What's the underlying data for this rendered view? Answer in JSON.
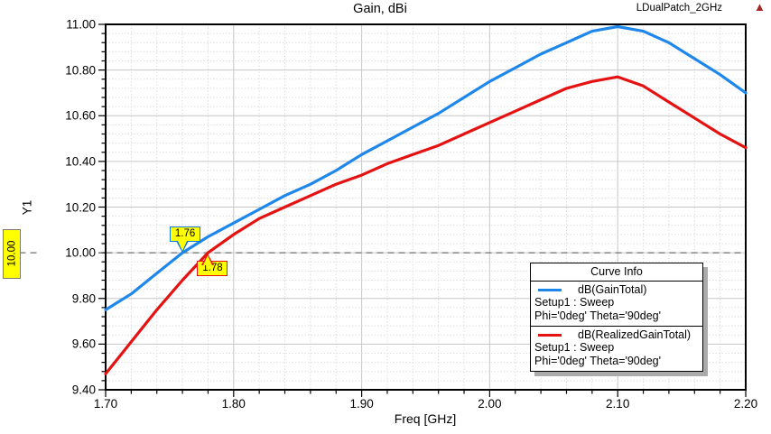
{
  "header": {
    "title": "Gain, dBi",
    "context_label": "LDualPatch_2GHz",
    "logo_icon": "ansys-delta-icon"
  },
  "axes": {
    "y_title": "Y1",
    "x_title": "Freq [GHz]",
    "y_ticks": [
      "11.00",
      "10.80",
      "10.60",
      "10.40",
      "10.20",
      "10.00",
      "9.80",
      "9.60",
      "9.40"
    ],
    "x_ticks": [
      "1.70",
      "1.80",
      "1.90",
      "2.00",
      "2.10",
      "2.20"
    ],
    "y_cursor_label": "10.00"
  },
  "markers": [
    {
      "label": "1.76",
      "freq": 1.76,
      "value": 10.0,
      "color": "#0d7bd6",
      "placement": "above"
    },
    {
      "label": "1.78",
      "freq": 1.78,
      "value": 10.0,
      "color": "#e51212",
      "placement": "below"
    }
  ],
  "legend": {
    "title": "Curve Info",
    "entries": [
      {
        "name": "dB(GainTotal)",
        "color": "#1e87eb",
        "sweep": "Setup1 : Sweep",
        "variation": "Phi='0deg' Theta='90deg'"
      },
      {
        "name": "dB(RealizedGainTotal)",
        "color": "#e51212",
        "sweep": "Setup1 : Sweep",
        "variation": "Phi='0deg' Theta='90deg'"
      }
    ]
  },
  "chart_data": {
    "type": "line",
    "title": "Gain, dBi",
    "xlabel": "Freq [GHz]",
    "ylabel": "Y1",
    "xlim": [
      1.7,
      2.2
    ],
    "ylim": [
      9.4,
      11.0
    ],
    "x_major_step": 0.1,
    "y_major_step": 0.2,
    "x_minor_per_major": 5,
    "y_minor_per_major": 5,
    "grid": true,
    "legend_position": "inside-lower-right",
    "cursor_line_y": 10.0,
    "x": [
      1.7,
      1.72,
      1.74,
      1.76,
      1.78,
      1.8,
      1.82,
      1.84,
      1.86,
      1.88,
      1.9,
      1.92,
      1.94,
      1.96,
      1.98,
      2.0,
      2.02,
      2.04,
      2.06,
      2.08,
      2.1,
      2.12,
      2.14,
      2.16,
      2.18,
      2.2
    ],
    "series": [
      {
        "name": "dB(GainTotal)",
        "color": "#1e87eb",
        "values": [
          9.75,
          9.82,
          9.91,
          10.0,
          10.07,
          10.13,
          10.19,
          10.25,
          10.3,
          10.36,
          10.43,
          10.49,
          10.55,
          10.61,
          10.68,
          10.75,
          10.81,
          10.87,
          10.92,
          10.97,
          10.99,
          10.97,
          10.92,
          10.85,
          10.78,
          10.7
        ]
      },
      {
        "name": "dB(RealizedGainTotal)",
        "color": "#e51212",
        "values": [
          9.47,
          9.61,
          9.75,
          9.88,
          10.0,
          10.08,
          10.15,
          10.2,
          10.25,
          10.3,
          10.34,
          10.39,
          10.43,
          10.47,
          10.52,
          10.57,
          10.62,
          10.67,
          10.72,
          10.75,
          10.77,
          10.73,
          10.66,
          10.59,
          10.52,
          10.46
        ]
      }
    ],
    "annotations": [
      {
        "text": "1.76",
        "x": 1.76,
        "y": 10.0,
        "series": "dB(GainTotal)"
      },
      {
        "text": "1.78",
        "x": 1.78,
        "y": 10.0,
        "series": "dB(RealizedGainTotal)"
      }
    ]
  }
}
